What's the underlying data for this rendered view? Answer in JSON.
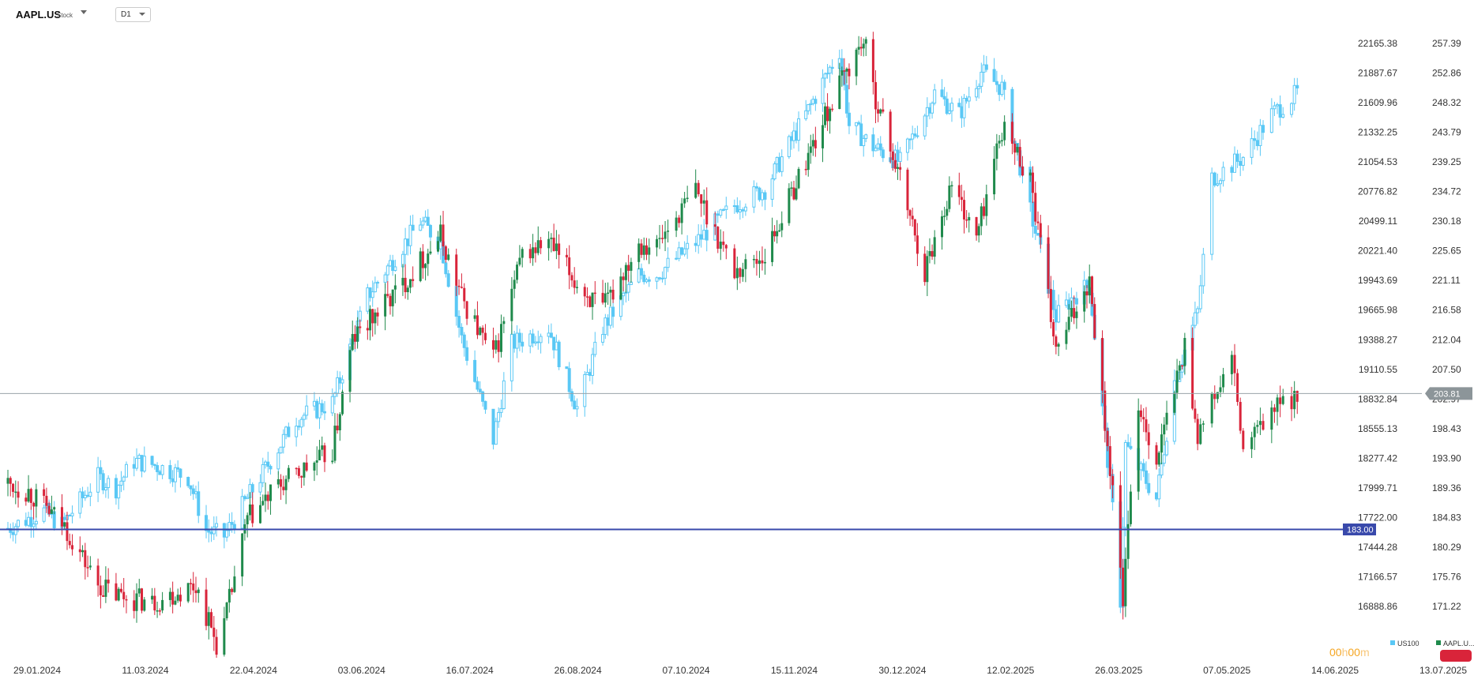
{
  "toolbar": {
    "symbol": "AAPL.US",
    "symbol_type": "Stock",
    "timeframe": "D1"
  },
  "colors": {
    "us100": "#5ac8f5",
    "aapl_up": "#1f8a4c",
    "aapl_down": "#d9243a",
    "current_price_tag": "#8c9599",
    "level_line": "#3949ab",
    "timer": "#f5a623"
  },
  "price_tags": {
    "current": "203.81",
    "level": "183.00"
  },
  "timer": {
    "hours": "00",
    "h_unit": "h",
    "minutes": "00",
    "m_unit": "m"
  },
  "legend": [
    {
      "name": "US100",
      "icon": "square-icon"
    },
    {
      "name": "AAPL.U...",
      "icon": "square-icon"
    }
  ],
  "chart_data": {
    "type": "candlestick",
    "title": "",
    "xlabel": "",
    "ylabel": "",
    "x_ticks": [
      "29.01.2024",
      "11.03.2024",
      "22.04.2024",
      "03.06.2024",
      "16.07.2024",
      "26.08.2024",
      "07.10.2024",
      "15.11.2024",
      "30.12.2024",
      "12.02.2025",
      "26.03.2025",
      "07.05.2025",
      "14.06.2025",
      "13.07.2025"
    ],
    "y_left_ticks": [
      "22165.38",
      "21887.67",
      "21609.96",
      "21332.25",
      "21054.53",
      "20776.82",
      "20499.11",
      "20221.40",
      "19943.69",
      "19665.98",
      "19388.27",
      "19110.55",
      "18832.84",
      "18555.13",
      "18277.42",
      "17999.71",
      "17722.00",
      "17444.28",
      "17166.57",
      "16888.86"
    ],
    "y_right_ticks": [
      "257.39",
      "252.86",
      "248.32",
      "243.79",
      "239.25",
      "234.72",
      "230.18",
      "225.65",
      "221.11",
      "216.58",
      "212.04",
      "207.50",
      "202.97",
      "198.43",
      "193.90",
      "189.36",
      "184.83",
      "180.29",
      "175.76",
      "171.22"
    ],
    "y_right_range": [
      168.9,
      260.0
    ],
    "current_price": 203.81,
    "horizontal_level": 183.0,
    "series": [
      {
        "name": "US100",
        "style": "hollow-candles",
        "axis": "left",
        "close_path": [
          [
            "29.01.2024",
            17620
          ],
          [
            "12.02.2024",
            17780
          ],
          [
            "19.02.2024",
            17650
          ],
          [
            "04.03.2024",
            18100
          ],
          [
            "11.03.2024",
            18000
          ],
          [
            "18.03.2024",
            18250
          ],
          [
            "25.03.2024",
            18220
          ],
          [
            "08.04.2024",
            18100
          ],
          [
            "15.04.2024",
            17600
          ],
          [
            "22.04.2024",
            17550
          ],
          [
            "06.05.2024",
            18100
          ],
          [
            "20.05.2024",
            18650
          ],
          [
            "03.06.2024",
            18800
          ],
          [
            "17.06.2024",
            19800
          ],
          [
            "08.07.2024",
            20500
          ],
          [
            "16.07.2024",
            20300
          ],
          [
            "24.07.2024",
            19400
          ],
          [
            "05.08.2024",
            18450
          ],
          [
            "12.08.2024",
            19350
          ],
          [
            "26.08.2024",
            19500
          ],
          [
            "06.09.2024",
            18750
          ],
          [
            "16.09.2024",
            19500
          ],
          [
            "30.09.2024",
            20000
          ],
          [
            "07.10.2024",
            20000
          ],
          [
            "21.10.2024",
            20300
          ],
          [
            "04.11.2024",
            20650
          ],
          [
            "15.11.2024",
            20800
          ],
          [
            "02.12.2024",
            21500
          ],
          [
            "16.12.2024",
            22100
          ],
          [
            "20.12.2024",
            21400
          ],
          [
            "30.12.2024",
            21200
          ],
          [
            "10.01.2025",
            21050
          ],
          [
            "24.01.2025",
            21700
          ],
          [
            "03.02.2025",
            21500
          ],
          [
            "12.02.2025",
            21900
          ],
          [
            "20.02.2025",
            21750
          ],
          [
            "03.03.2025",
            20600
          ],
          [
            "13.03.2025",
            19600
          ],
          [
            "20.03.2025",
            19800
          ],
          [
            "26.03.2025",
            19900
          ],
          [
            "04.04.2025",
            17800
          ],
          [
            "07.04.2025",
            16950
          ],
          [
            "09.04.2025",
            18400
          ],
          [
            "21.04.2025",
            17900
          ],
          [
            "28.04.2025",
            19000
          ],
          [
            "07.05.2025",
            19650
          ],
          [
            "12.05.2025",
            20900
          ],
          [
            "23.05.2025",
            21100
          ],
          [
            "02.06.2025",
            21500
          ],
          [
            "11.06.2025",
            21700
          ]
        ]
      },
      {
        "name": "AAPL.US",
        "style": "candles",
        "axis": "right",
        "close_path": [
          [
            "29.01.2024",
            190.0
          ],
          [
            "06.02.2024",
            188.8
          ],
          [
            "20.02.2024",
            183.5
          ],
          [
            "04.03.2024",
            174.5
          ],
          [
            "11.03.2024",
            173.0
          ],
          [
            "25.03.2024",
            171.8
          ],
          [
            "11.04.2024",
            174.5
          ],
          [
            "19.04.2024",
            165.5
          ],
          [
            "22.04.2024",
            168.5
          ],
          [
            "01.05.2024",
            184.5
          ],
          [
            "13.05.2024",
            189.5
          ],
          [
            "03.06.2024",
            195.0
          ],
          [
            "11.06.2024",
            212.0
          ],
          [
            "01.07.2024",
            220.5
          ],
          [
            "16.07.2024",
            228.0
          ],
          [
            "24.07.2024",
            218.5
          ],
          [
            "05.08.2024",
            209.0
          ],
          [
            "16.08.2024",
            225.0
          ],
          [
            "26.08.2024",
            227.0
          ],
          [
            "06.09.2024",
            220.5
          ],
          [
            "16.09.2024",
            216.5
          ],
          [
            "30.09.2024",
            227.0
          ],
          [
            "07.10.2024",
            226.5
          ],
          [
            "21.10.2024",
            235.0
          ],
          [
            "04.11.2024",
            222.5
          ],
          [
            "15.11.2024",
            225.0
          ],
          [
            "02.12.2024",
            239.5
          ],
          [
            "16.12.2024",
            251.0
          ],
          [
            "26.12.2024",
            258.0
          ],
          [
            "30.12.2024",
            250.5
          ],
          [
            "10.01.2025",
            236.5
          ],
          [
            "20.01.2025",
            222.5
          ],
          [
            "31.01.2025",
            236.0
          ],
          [
            "10.02.2025",
            227.5
          ],
          [
            "20.02.2025",
            244.5
          ],
          [
            "03.03.2025",
            237.0
          ],
          [
            "13.03.2025",
            210.0
          ],
          [
            "26.03.2025",
            221.5
          ],
          [
            "04.04.2025",
            188.5
          ],
          [
            "08.04.2025",
            172.5
          ],
          [
            "14.04.2025",
            202.5
          ],
          [
            "21.04.2025",
            193.5
          ],
          [
            "02.05.2025",
            211.0
          ],
          [
            "07.05.2025",
            197.5
          ],
          [
            "19.05.2025",
            209.0
          ],
          [
            "23.05.2025",
            195.0
          ],
          [
            "02.06.2025",
            201.0
          ],
          [
            "11.06.2025",
            203.81
          ]
        ]
      }
    ],
    "grid": false,
    "legend_position": "bottom-right"
  }
}
